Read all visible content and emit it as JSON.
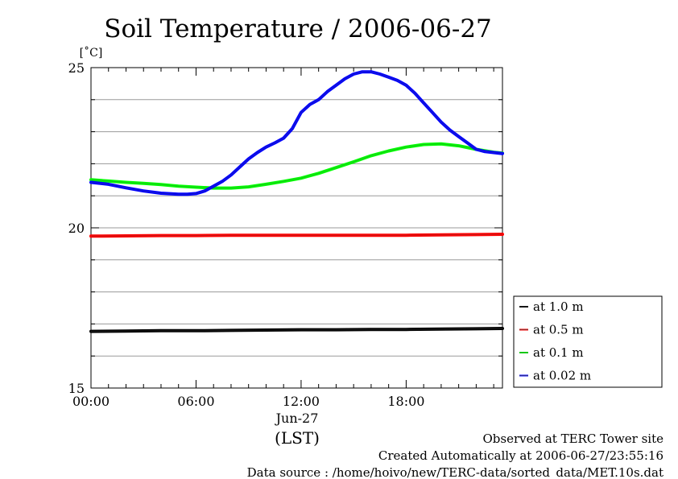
{
  "chart_data": {
    "type": "line",
    "title": "Soil Temperature / 2006-06-27",
    "ylabel": "[˚C]",
    "xlabel": "(LST)",
    "date_label": "Jun-27",
    "ylim": [
      15,
      25
    ],
    "yticks": [
      15,
      20,
      25
    ],
    "xlim": [
      0,
      23.5
    ],
    "xticks": [
      0,
      6,
      12,
      18
    ],
    "xtick_labels": [
      "00:00",
      "06:00",
      "12:00",
      "18:00"
    ],
    "grid": true,
    "legend_position": "right",
    "series": [
      {
        "name": "at 1.0 m",
        "color": "#000000",
        "x": [
          0,
          2,
          4,
          6,
          8,
          10,
          12,
          14,
          16,
          18,
          20,
          22,
          23.5
        ],
        "y": [
          16.77,
          16.78,
          16.79,
          16.79,
          16.8,
          16.81,
          16.82,
          16.82,
          16.83,
          16.83,
          16.84,
          16.85,
          16.86
        ]
      },
      {
        "name": "at 0.5 m",
        "color": "#ff0000",
        "x": [
          0,
          2,
          4,
          6,
          8,
          10,
          12,
          14,
          16,
          18,
          20,
          22,
          23.5
        ],
        "y": [
          19.74,
          19.75,
          19.76,
          19.76,
          19.77,
          19.77,
          19.77,
          19.77,
          19.77,
          19.77,
          19.78,
          19.79,
          19.8
        ]
      },
      {
        "name": "at 0.1 m",
        "color": "#00ff00",
        "x": [
          0,
          1,
          2,
          3,
          4,
          5,
          6,
          7,
          8,
          9,
          10,
          11,
          12,
          13,
          14,
          15,
          16,
          17,
          18,
          19,
          20,
          21,
          22,
          23,
          23.5
        ],
        "y": [
          21.5,
          21.46,
          21.42,
          21.39,
          21.35,
          21.3,
          21.27,
          21.24,
          21.24,
          21.28,
          21.36,
          21.45,
          21.55,
          21.7,
          21.88,
          22.06,
          22.25,
          22.4,
          22.52,
          22.6,
          22.62,
          22.56,
          22.45,
          22.36,
          22.33
        ]
      },
      {
        "name": "at 0.02 m",
        "color": "#0000ff",
        "x": [
          0,
          1,
          2,
          3,
          4,
          5,
          5.5,
          6,
          6.5,
          7,
          7.5,
          8,
          8.5,
          9,
          9.5,
          10,
          10.5,
          11,
          11.5,
          12,
          12.5,
          13,
          13.5,
          14,
          14.5,
          15,
          15.5,
          16,
          16.5,
          17,
          17.5,
          18,
          18.5,
          19,
          19.5,
          20,
          20.5,
          21,
          21.5,
          22,
          22.5,
          23,
          23.5
        ],
        "y": [
          21.42,
          21.36,
          21.25,
          21.15,
          21.08,
          21.05,
          21.05,
          21.07,
          21.15,
          21.3,
          21.45,
          21.65,
          21.9,
          22.15,
          22.35,
          22.52,
          22.65,
          22.8,
          23.1,
          23.6,
          23.85,
          24.0,
          24.25,
          24.45,
          24.65,
          24.8,
          24.87,
          24.87,
          24.8,
          24.7,
          24.6,
          24.45,
          24.2,
          23.9,
          23.6,
          23.3,
          23.05,
          22.85,
          22.65,
          22.45,
          22.38,
          22.35,
          22.32
        ]
      }
    ]
  },
  "footer": {
    "line1": "Observed at TERC Tower site",
    "line2": "Created Automatically at 2006-06-27/23:55:16",
    "line3": "Data source : /home/hoivo/new/TERC-data/sorted_data/MET.10s.dat"
  }
}
